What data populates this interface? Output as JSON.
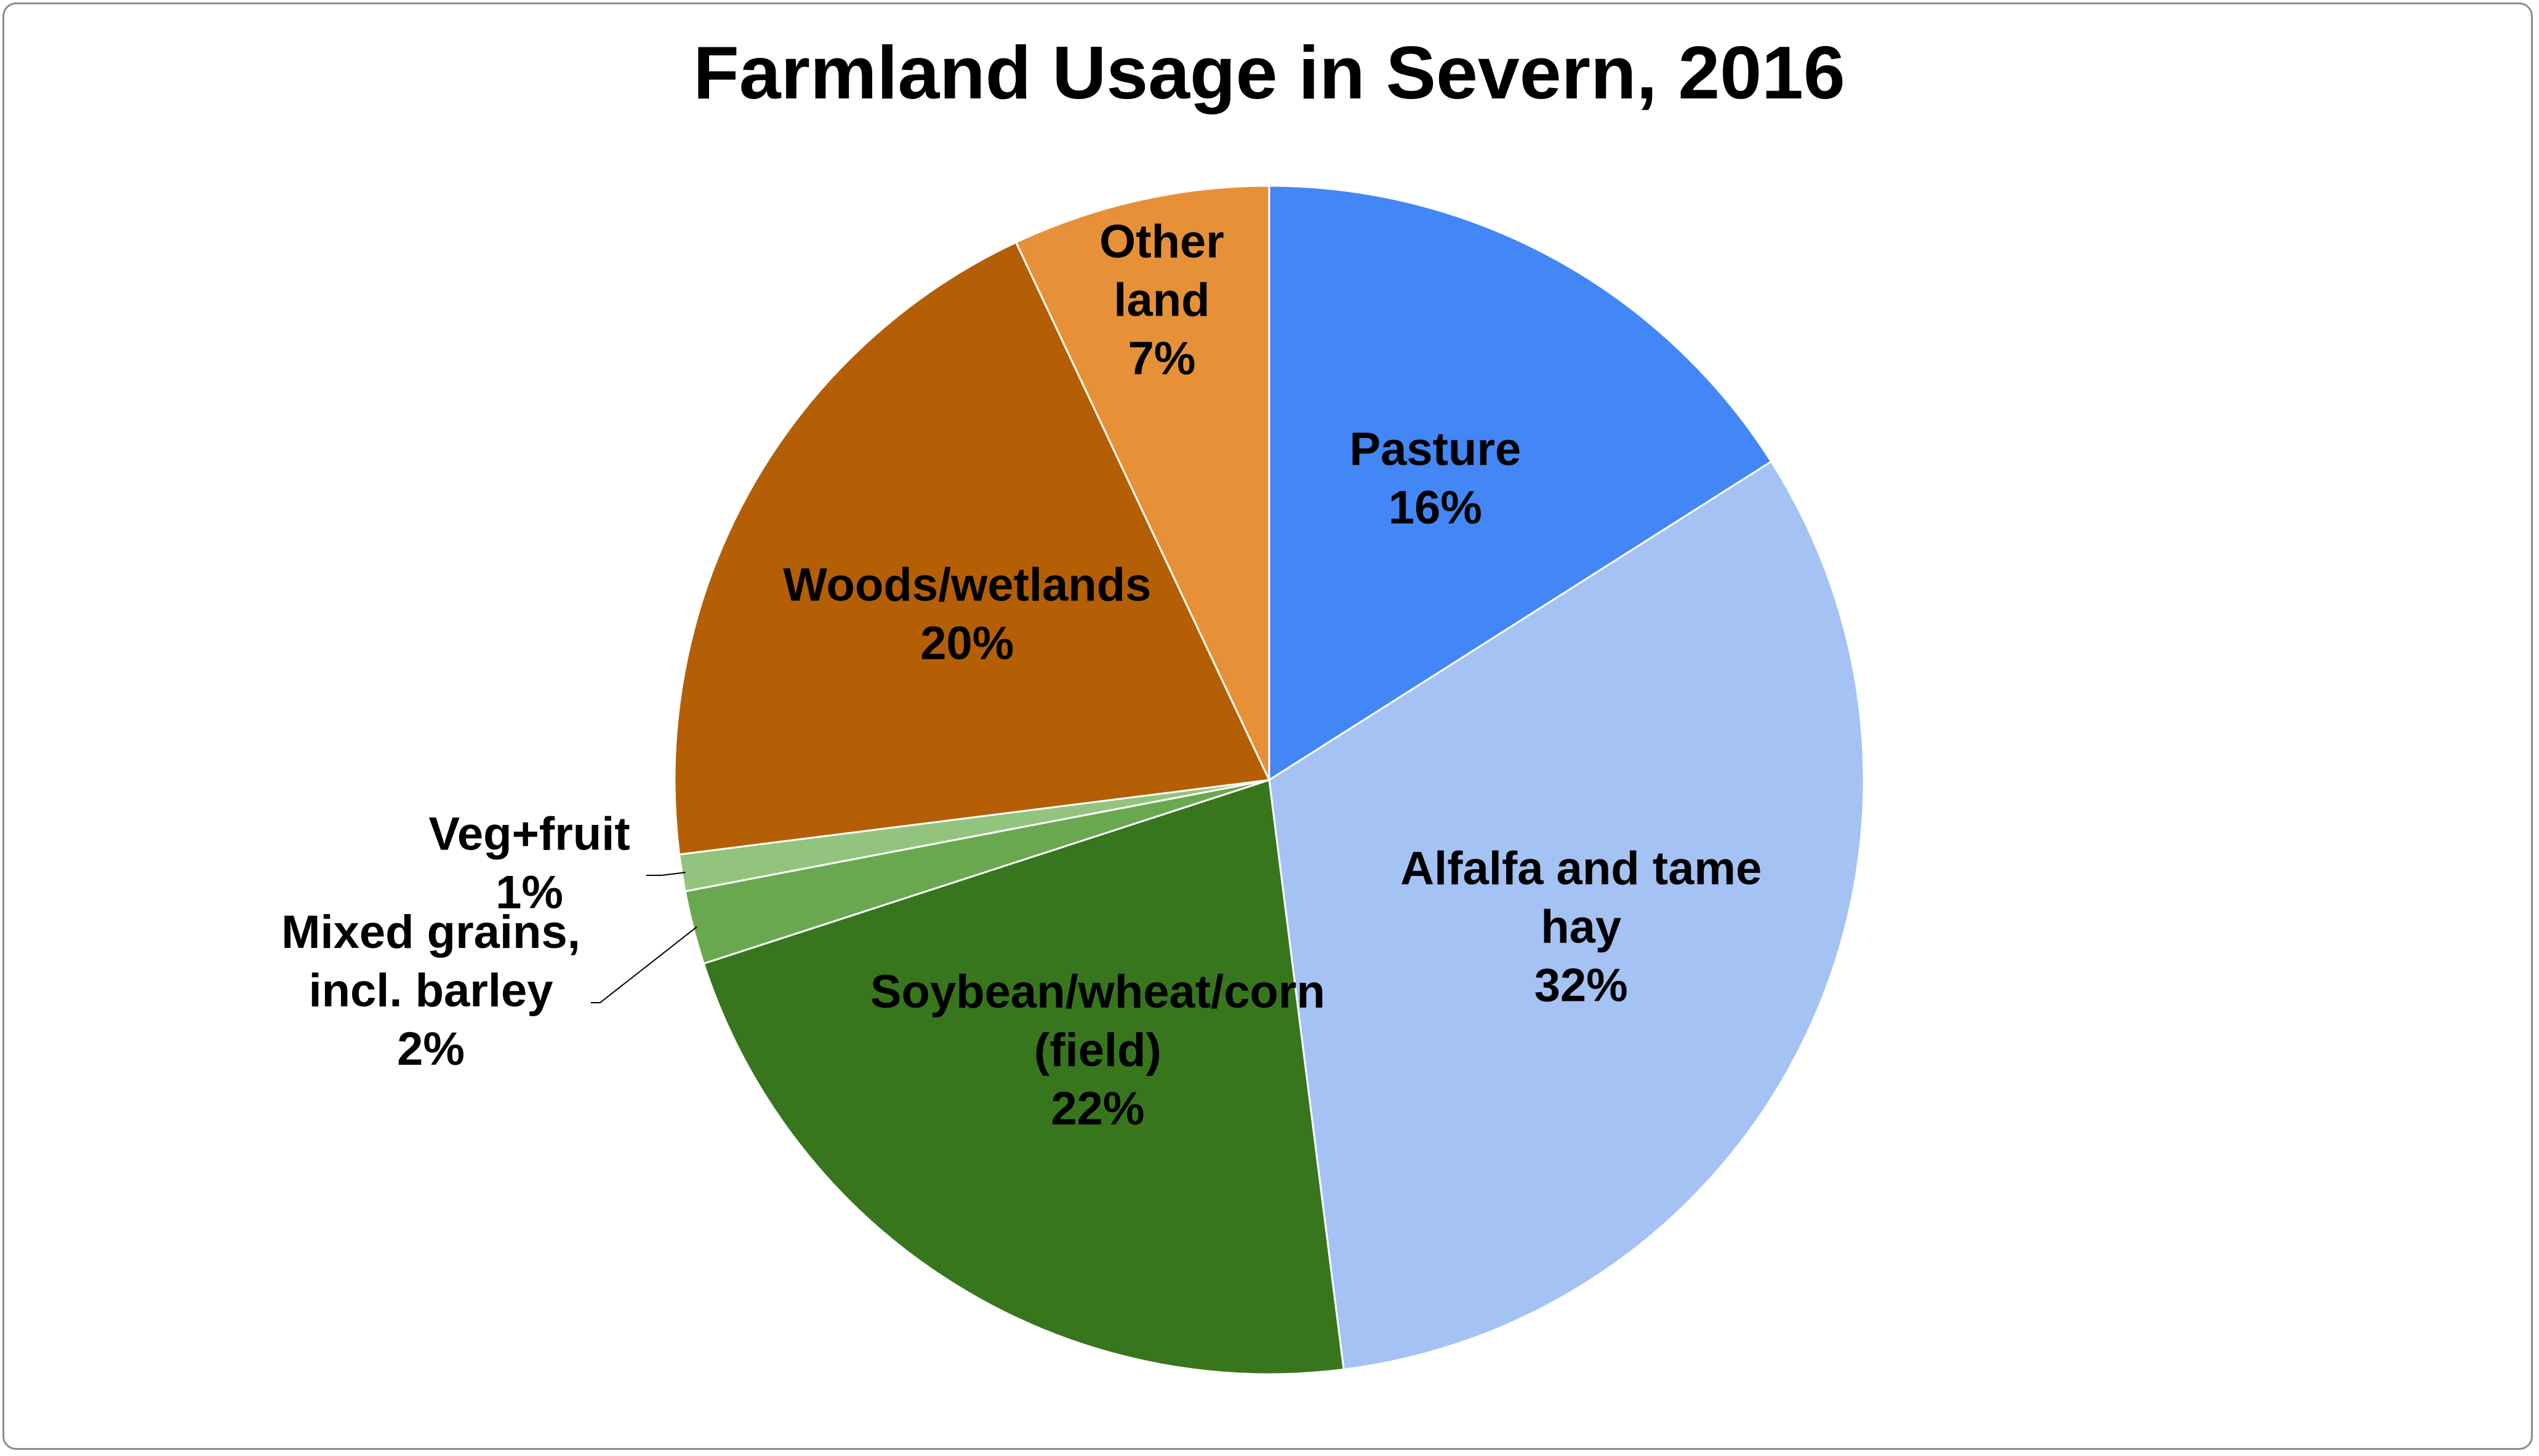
{
  "chart_data": {
    "type": "pie",
    "title": "Farmland Usage in Severn, 2016",
    "start_angle_deg": 0,
    "direction": "clockwise",
    "legend": "none",
    "slices": [
      {
        "label": "Pasture",
        "label_lines": [
          "Pasture"
        ],
        "value": 16,
        "percent_text": "16%",
        "color": "#4386F5"
      },
      {
        "label": "Alfalfa and tame hay",
        "label_lines": [
          "Alfalfa and tame",
          "hay"
        ],
        "value": 32,
        "percent_text": "32%",
        "color": "#A4C2F4"
      },
      {
        "label": "Soybean/wheat/corn (field)",
        "label_lines": [
          "Soybean/wheat/corn",
          "(field)"
        ],
        "value": 22,
        "percent_text": "22%",
        "color": "#38761D"
      },
      {
        "label": "Mixed grains, incl. barley",
        "label_lines": [
          "Mixed grains,",
          "incl. barley"
        ],
        "value": 2,
        "percent_text": "2%",
        "color": "#6AA84F"
      },
      {
        "label": "Veg+fruit",
        "label_lines": [
          "Veg+fruit"
        ],
        "value": 1,
        "percent_text": "1%",
        "color": "#93C47D"
      },
      {
        "label": "Woods/wetlands",
        "label_lines": [
          "Woods/wetlands"
        ],
        "value": 20,
        "percent_text": "20%",
        "color": "#B45F06"
      },
      {
        "label": "Other land",
        "label_lines": [
          "Other",
          "land"
        ],
        "value": 7,
        "percent_text": "7%",
        "color": "#E69138"
      }
    ]
  }
}
